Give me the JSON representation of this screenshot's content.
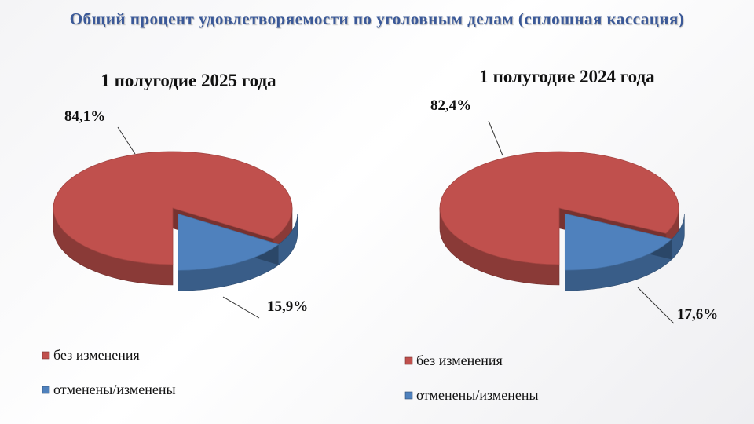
{
  "slide": {
    "title": "Общий процент удовлетворяемости по уголовным делам (сплошная кассация)"
  },
  "chart_data": [
    {
      "type": "pie",
      "title": "1 полугодие  2025 года",
      "categories": [
        "без изменения",
        "отменены/изменены"
      ],
      "values": [
        84.1,
        15.9
      ],
      "labels": [
        "84,1%",
        "15,9%"
      ],
      "colors": [
        "#c0504d",
        "#4f81bd"
      ],
      "legend": "bottom-left"
    },
    {
      "type": "pie",
      "title": "1 полугодие  2024 года",
      "categories": [
        "без изменения",
        "отменены/изменены"
      ],
      "values": [
        82.4,
        17.6
      ],
      "labels": [
        "82,4%",
        "17,6%"
      ],
      "colors": [
        "#c0504d",
        "#4f81bd"
      ],
      "legend": "bottom-left"
    }
  ]
}
